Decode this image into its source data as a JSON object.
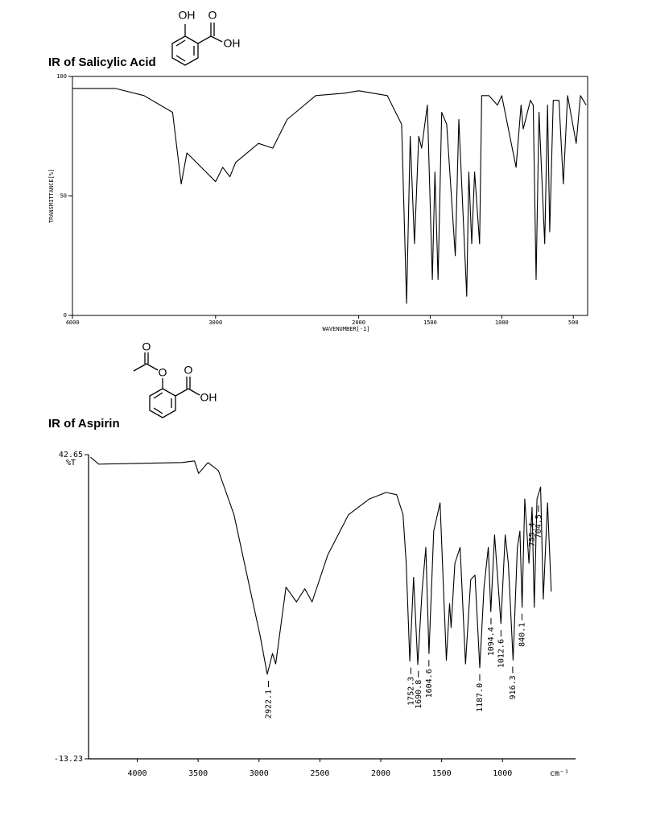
{
  "structures": [
    {
      "atoms": [
        "OH",
        "O",
        "OH"
      ]
    },
    {
      "atoms": [
        "O",
        "O",
        "O",
        "OH"
      ]
    }
  ],
  "chart_data": [
    {
      "type": "line",
      "title": "IR of Salicylic Acid",
      "xlabel": "WAVENUMBER[-1]",
      "ylabel": "TRANSMITTANCE[%]",
      "xlim": [
        4000,
        400
      ],
      "ylim": [
        0,
        100
      ],
      "xticks": [
        4000,
        3000,
        2000,
        1500,
        1000,
        500
      ],
      "yticks": [
        0,
        50,
        100
      ],
      "color": "#000000",
      "x": [
        4000,
        3700,
        3500,
        3300,
        3240,
        3200,
        3100,
        3000,
        2950,
        2900,
        2860,
        2700,
        2600,
        2500,
        2300,
        2100,
        2000,
        1800,
        1700,
        1665,
        1640,
        1610,
        1580,
        1560,
        1520,
        1485,
        1467,
        1445,
        1420,
        1385,
        1325,
        1300,
        1245,
        1230,
        1210,
        1190,
        1155,
        1140,
        1090,
        1030,
        1000,
        960,
        900,
        865,
        850,
        800,
        780,
        760,
        740,
        700,
        680,
        665,
        640,
        600,
        570,
        540,
        480,
        450,
        410
      ],
      "values": [
        95,
        95,
        92,
        85,
        55,
        68,
        62,
        56,
        62,
        58,
        64,
        72,
        70,
        82,
        92,
        93,
        94,
        92,
        80,
        5,
        75,
        30,
        75,
        70,
        88,
        15,
        60,
        15,
        85,
        80,
        25,
        82,
        8,
        60,
        30,
        60,
        30,
        92,
        92,
        88,
        92,
        80,
        62,
        88,
        78,
        90,
        88,
        15,
        85,
        30,
        88,
        35,
        90,
        90,
        55,
        92,
        72,
        92,
        88
      ]
    },
    {
      "type": "line",
      "title": "IR of Aspirin",
      "ylabel": "%T",
      "x_unit_label": "cm⁻¹",
      "xlim": [
        4400,
        400
      ],
      "ylim": [
        -13.23,
        42.65
      ],
      "xticks": [
        4000,
        3500,
        3000,
        2500,
        2000,
        1500,
        1000
      ],
      "yticks": [
        -13.23,
        42.65
      ],
      "color": "#000000",
      "x": [
        4385,
        4316,
        3632,
        3530,
        3496,
        3419,
        3333,
        3205,
        3077,
        2991,
        2932,
        2889,
        2863,
        2778,
        2692,
        2624,
        2564,
        2436,
        2265,
        2094,
        1957,
        1870,
        1817,
        1791,
        1761,
        1730,
        1696,
        1661,
        1630,
        1604,
        1565,
        1513,
        1461,
        1435,
        1422,
        1391,
        1348,
        1304,
        1261,
        1226,
        1187,
        1152,
        1117,
        1096,
        1065,
        1013,
        978,
        952,
        913,
        878,
        857,
        839,
        817,
        783,
        757,
        739,
        717,
        687,
        665,
        630,
        600
      ],
      "values": [
        42.2,
        40.9,
        41.2,
        41.5,
        39.2,
        41.2,
        39.7,
        31.6,
        18.3,
        9.4,
        2.3,
        6.1,
        4.2,
        18.3,
        15.6,
        18.0,
        15.6,
        24.2,
        31.6,
        34.5,
        35.7,
        35.3,
        31.6,
        22.7,
        4.7,
        20.1,
        4.1,
        17.5,
        25.6,
        6.1,
        28.6,
        33.8,
        4.9,
        15.3,
        10.9,
        22.7,
        25.6,
        4.2,
        19.7,
        20.5,
        3.5,
        18.3,
        25.6,
        13.8,
        27.9,
        11.6,
        27.9,
        22.7,
        4.9,
        25.6,
        28.6,
        14.6,
        34.5,
        22.7,
        33.0,
        14.6,
        34.5,
        36.7,
        16.1,
        33.8,
        17.5
      ],
      "peaks": [
        {
          "value": 2922.1,
          "label": "2922.1"
        },
        {
          "value": 1752.3,
          "label": "1752.3"
        },
        {
          "value": 1690.8,
          "label": "1690.8"
        },
        {
          "value": 1604.6,
          "label": "1604.6"
        },
        {
          "value": 1187.0,
          "label": "1187.0"
        },
        {
          "value": 1094.4,
          "label": "1094.4"
        },
        {
          "value": 1012.6,
          "label": "1012.6"
        },
        {
          "value": 916.3,
          "label": "916.3"
        },
        {
          "value": 840.1,
          "label": "840.1"
        },
        {
          "value": 755.4,
          "label": "755.4"
        },
        {
          "value": 704.5,
          "label": "704.5"
        }
      ]
    }
  ]
}
